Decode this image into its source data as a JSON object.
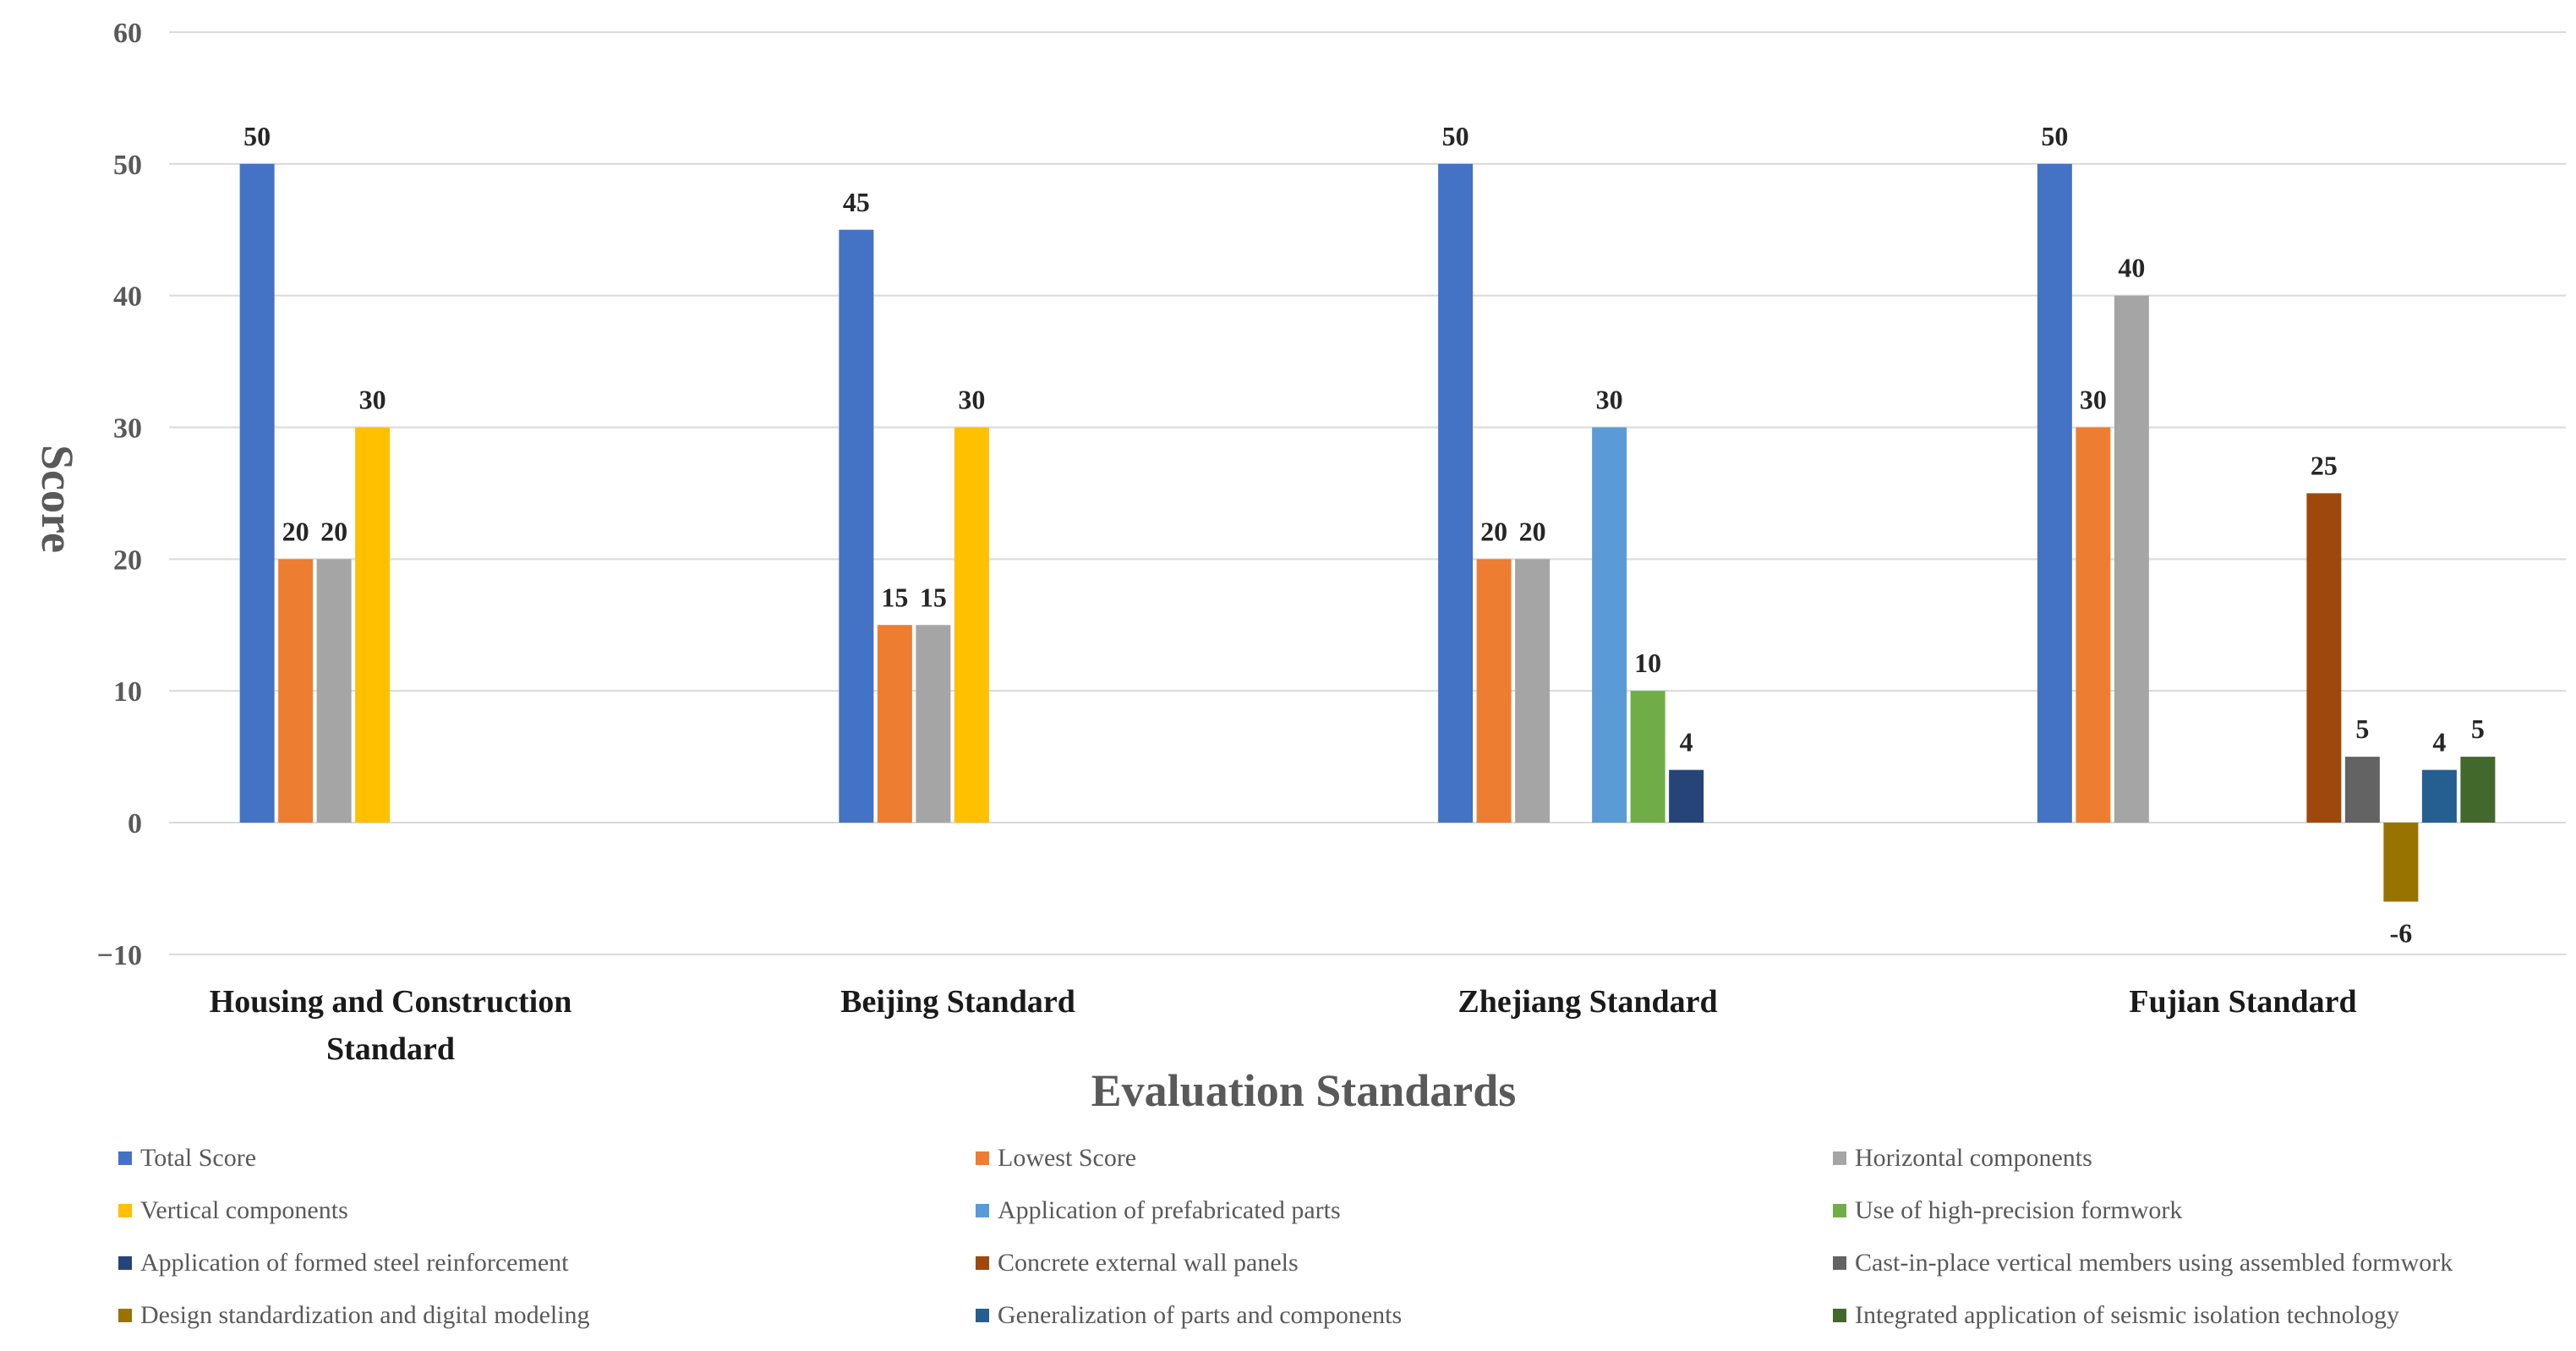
{
  "chart_data": {
    "type": "bar",
    "title": "",
    "xlabel": "Evaluation Standards",
    "ylabel": "Score",
    "ylim": [
      -10,
      60
    ],
    "yticks": [
      60,
      50,
      40,
      30,
      20,
      10,
      0,
      -10
    ],
    "yticks_labels": [
      "60",
      "50",
      "40",
      "30",
      "20",
      "10",
      "0",
      "−10"
    ],
    "grid": true,
    "legend_position": "bottom",
    "categories": [
      {
        "name": "Housing and Construction Standard",
        "lines": [
          "Housing and Construction",
          "Standard"
        ]
      },
      {
        "name": "Beijing Standard",
        "lines": [
          "Beijing Standard"
        ]
      },
      {
        "name": "Zhejiang Standard",
        "lines": [
          "Zhejiang Standard"
        ]
      },
      {
        "name": "Fujian Standard",
        "lines": [
          "Fujian Standard"
        ]
      }
    ],
    "series": [
      {
        "name": "Total Score",
        "color": "#4472C4",
        "values": [
          50,
          45,
          50,
          50
        ]
      },
      {
        "name": "Lowest Score",
        "color": "#ED7D31",
        "values": [
          20,
          15,
          20,
          30
        ]
      },
      {
        "name": "Horizontal components",
        "color": "#A5A5A5",
        "values": [
          20,
          15,
          20,
          40
        ]
      },
      {
        "name": "Vertical components",
        "color": "#FFC000",
        "values": [
          30,
          30,
          null,
          null
        ]
      },
      {
        "name": "Application of prefabricated parts",
        "color": "#5B9BD5",
        "values": [
          null,
          null,
          30,
          null
        ]
      },
      {
        "name": "Use of high-precision formwork",
        "color": "#70AD47",
        "values": [
          null,
          null,
          10,
          null
        ]
      },
      {
        "name": "Application of formed steel reinforcement",
        "color": "#264478",
        "values": [
          null,
          null,
          4,
          null
        ]
      },
      {
        "name": "Concrete external wall panels",
        "color": "#9E480E",
        "values": [
          null,
          null,
          null,
          25
        ]
      },
      {
        "name": "Cast-in-place vertical members using assembled formwork",
        "color": "#636363",
        "values": [
          null,
          null,
          null,
          5
        ]
      },
      {
        "name": "Design standardization and digital modeling",
        "color": "#997300",
        "values": [
          null,
          null,
          null,
          -6
        ]
      },
      {
        "name": "Generalization of parts and components",
        "color": "#255E91",
        "values": [
          null,
          null,
          null,
          4
        ]
      },
      {
        "name": "Integrated application of seismic isolation technology",
        "color": "#43682B",
        "values": [
          null,
          null,
          null,
          5
        ]
      }
    ]
  }
}
